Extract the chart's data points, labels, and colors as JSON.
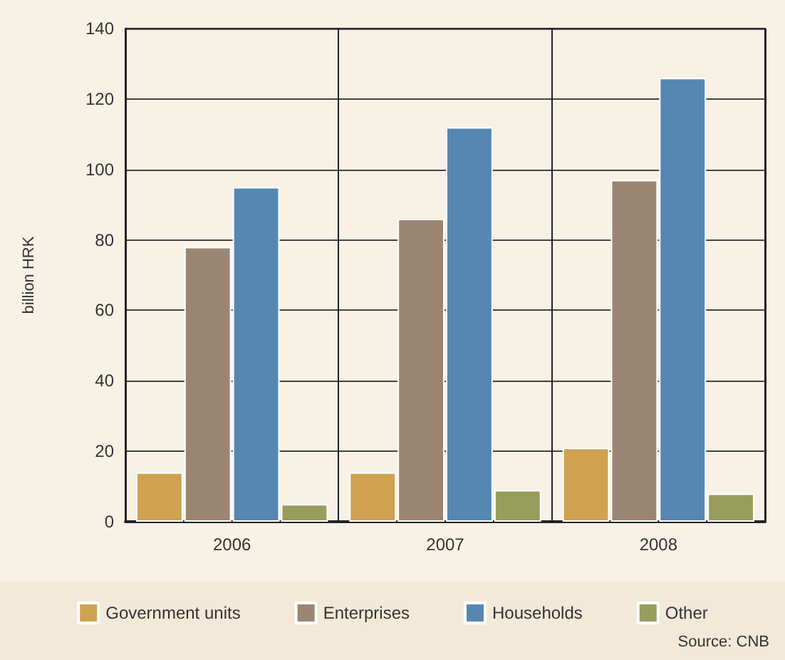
{
  "chart_data": {
    "type": "bar",
    "ylabel": "billion HRK",
    "categories": [
      "2006",
      "2007",
      "2008"
    ],
    "series": [
      {
        "name": "Government units",
        "color": "#cfa251",
        "values": [
          14,
          14,
          21
        ]
      },
      {
        "name": "Enterprises",
        "color": "#9a8673",
        "values": [
          78,
          86,
          97
        ]
      },
      {
        "name": "Households",
        "color": "#5587b2",
        "values": [
          95,
          112,
          126
        ]
      },
      {
        "name": "Other",
        "color": "#979e5d",
        "values": [
          5,
          9,
          8
        ]
      }
    ],
    "ylim": [
      0,
      140
    ],
    "yticks": [
      0,
      20,
      40,
      60,
      80,
      100,
      120,
      140
    ],
    "grid": true,
    "legend": "bottom",
    "annotations": [
      "Source: CNB"
    ]
  }
}
